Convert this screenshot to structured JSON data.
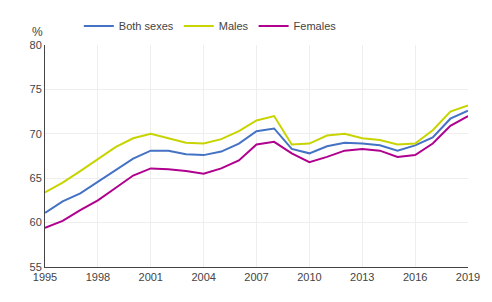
{
  "chart_data": {
    "type": "line",
    "ylabel": "%",
    "x": [
      1995,
      1996,
      1997,
      1998,
      1999,
      2000,
      2001,
      2002,
      2003,
      2004,
      2005,
      2006,
      2007,
      2008,
      2009,
      2010,
      2011,
      2012,
      2013,
      2014,
      2015,
      2016,
      2017,
      2018,
      2019
    ],
    "series": [
      {
        "name": "Both sexes",
        "color": "#4472c4",
        "values": [
          61.1,
          62.4,
          63.3,
          64.6,
          66.0,
          67.2,
          68.1,
          68.1,
          67.7,
          67.6,
          68.0,
          68.9,
          70.3,
          70.6,
          68.3,
          67.8,
          68.6,
          69.0,
          68.9,
          68.7,
          68.1,
          68.7,
          69.6,
          71.7,
          72.6
        ]
      },
      {
        "name": "Males",
        "color": "#c8d400",
        "values": [
          63.4,
          64.5,
          65.8,
          67.2,
          68.5,
          69.5,
          70.0,
          69.5,
          69.0,
          68.9,
          69.4,
          70.3,
          71.5,
          72.0,
          68.8,
          68.9,
          69.8,
          70.0,
          69.5,
          69.3,
          68.8,
          68.9,
          70.4,
          72.5,
          73.2
        ]
      },
      {
        "name": "Females",
        "color": "#b0008e",
        "values": [
          59.4,
          60.2,
          61.4,
          62.5,
          63.9,
          65.3,
          66.1,
          66.0,
          65.8,
          65.5,
          66.1,
          67.0,
          68.8,
          69.1,
          67.8,
          66.8,
          67.4,
          68.1,
          68.3,
          68.1,
          67.4,
          67.6,
          68.9,
          70.9,
          72.0
        ]
      }
    ],
    "xlim": [
      1995,
      2019
    ],
    "xticks": [
      1995,
      1998,
      2001,
      2004,
      2007,
      2010,
      2013,
      2016,
      2019
    ],
    "ylim": [
      55,
      80
    ],
    "yticks": [
      55,
      60,
      65,
      70,
      75,
      80
    ],
    "grid": true,
    "legend": "top"
  }
}
